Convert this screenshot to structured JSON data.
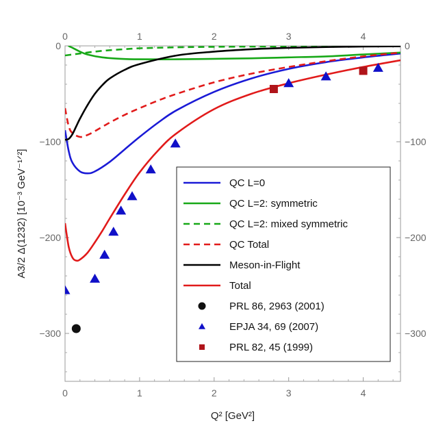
{
  "chart_data": {
    "type": "line",
    "xlabel": "Q² [GeV²]",
    "ylabel": "A3/2 Δ(1232) [10⁻³ GeV⁻¹ᐟ²]",
    "xlim": [
      0,
      4.5
    ],
    "ylim": [
      -350,
      0
    ],
    "x_ticks": [
      0,
      1,
      2,
      3,
      4
    ],
    "y_ticks": [
      0,
      -100,
      -200,
      -300
    ],
    "x_tick_labels": [
      "0",
      "1",
      "2",
      "3",
      "4"
    ],
    "y_tick_labels": [
      "0",
      "−100",
      "−200",
      "−300"
    ],
    "legend_position": "lower-right",
    "series": [
      {
        "name": "QC L=0",
        "color": "#1a1ad6",
        "style": "solid",
        "x": [
          0,
          0.05,
          0.1,
          0.2,
          0.3,
          0.4,
          0.6,
          0.8,
          1.0,
          1.25,
          1.5,
          2.0,
          2.5,
          3.0,
          3.5,
          4.0,
          4.5
        ],
        "y": [
          -88,
          -110,
          -122,
          -131,
          -133,
          -131,
          -121,
          -108,
          -95,
          -80,
          -67,
          -48,
          -34,
          -24,
          -17,
          -12,
          -8
        ]
      },
      {
        "name": "QC L=2: symmetric",
        "color": "#17a817",
        "style": "solid",
        "x": [
          0,
          0.05,
          0.1,
          0.2,
          0.3,
          0.5,
          0.75,
          1.0,
          1.5,
          2.0,
          2.5,
          3.0,
          3.5,
          4.0,
          4.5
        ],
        "y": [
          5,
          0,
          -2,
          -6,
          -9,
          -12,
          -13.5,
          -14,
          -14,
          -13.5,
          -13,
          -12,
          -11,
          -9,
          -7
        ]
      },
      {
        "name": "QC L=2: mixed symmetric",
        "color": "#17a817",
        "style": "dashed",
        "x": [
          0,
          0.1,
          0.2,
          0.4,
          0.6,
          0.8,
          1.0,
          1.5,
          2.0,
          2.5,
          3.0,
          3.5,
          4.0,
          4.5
        ],
        "y": [
          -10,
          -9,
          -8,
          -6,
          -4.5,
          -3.5,
          -2.5,
          -1.5,
          -1,
          -0.7,
          -0.5,
          -0.3,
          -0.2,
          -0.1
        ]
      },
      {
        "name": "QC Total",
        "color": "#e11a1a",
        "style": "dashed",
        "x": [
          0,
          0.05,
          0.1,
          0.2,
          0.3,
          0.4,
          0.6,
          0.8,
          1.0,
          1.25,
          1.5,
          2.0,
          2.5,
          3.0,
          3.5,
          4.0,
          4.5
        ],
        "y": [
          -65,
          -84,
          -91,
          -95,
          -93,
          -89,
          -80,
          -72,
          -65,
          -57,
          -50,
          -38,
          -29,
          -22,
          -16,
          -11,
          -7
        ]
      },
      {
        "name": "Meson-in-Flight",
        "color": "#000000",
        "style": "solid",
        "x": [
          0,
          0.05,
          0.1,
          0.15,
          0.2,
          0.3,
          0.4,
          0.5,
          0.6,
          0.8,
          1.0,
          1.5,
          2.0,
          2.5,
          3.0,
          3.5,
          4.0,
          4.5
        ],
        "y": [
          -98,
          -97,
          -92,
          -84,
          -76,
          -62,
          -50,
          -41,
          -34,
          -25,
          -19,
          -10,
          -6,
          -3.5,
          -2,
          -1.2,
          -0.7,
          -0.4
        ]
      },
      {
        "name": "Total",
        "color": "#e11a1a",
        "style": "solid",
        "x": [
          0,
          0.05,
          0.1,
          0.15,
          0.2,
          0.3,
          0.4,
          0.5,
          0.6,
          0.8,
          1.0,
          1.25,
          1.5,
          2.0,
          2.5,
          3.0,
          3.5,
          4.0,
          4.5
        ],
        "y": [
          -185,
          -210,
          -221,
          -224,
          -223,
          -216,
          -205,
          -193,
          -180,
          -155,
          -132,
          -109,
          -91,
          -66,
          -50,
          -39,
          -30,
          -22,
          -15
        ]
      }
    ],
    "scatter": [
      {
        "name": "PRL 86, 2963 (2001)",
        "color": "#111111",
        "marker": "circle",
        "x": [
          0.15
        ],
        "y": [
          -295
        ]
      },
      {
        "name": "EPJA 34, 69 (2007)",
        "color": "#1010c8",
        "marker": "triangle",
        "x": [
          0.0,
          0.4,
          0.53,
          0.65,
          0.75,
          0.9,
          1.15,
          1.48,
          3.0,
          3.5,
          4.2
        ],
        "y": [
          -255,
          -243,
          -218,
          -194,
          -172,
          -157,
          -129,
          -102,
          -39,
          -32,
          -23
        ]
      },
      {
        "name": "PRL 82, 45 (1999)",
        "color": "#b0141a",
        "marker": "square",
        "x": [
          2.8,
          4.0
        ],
        "y": [
          -45,
          -26
        ]
      }
    ]
  }
}
